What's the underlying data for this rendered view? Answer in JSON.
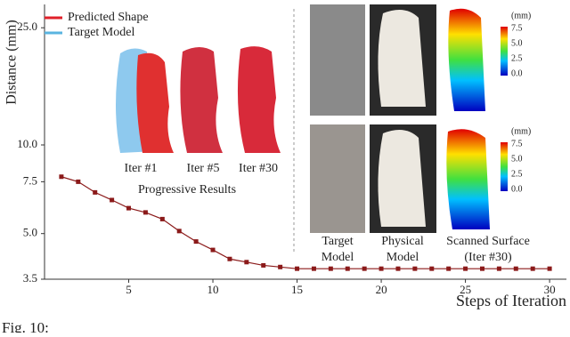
{
  "chart_data": {
    "type": "line",
    "ylabel": "Distance (mm)",
    "xlabel": "Steps of Iteration",
    "x": [
      1,
      2,
      3,
      4,
      5,
      6,
      7,
      8,
      9,
      10,
      11,
      12,
      13,
      14,
      15,
      16,
      17,
      18,
      19,
      20,
      21,
      22,
      23,
      24,
      25,
      26,
      27,
      28,
      29,
      30
    ],
    "series": [
      {
        "color": "#8b1a1a",
        "values": [
          7.8,
          7.5,
          6.9,
          6.5,
          6.1,
          5.9,
          5.6,
          5.1,
          4.7,
          4.4,
          4.1,
          4.0,
          3.9,
          3.85,
          3.8,
          3.8,
          3.8,
          3.8,
          3.8,
          3.8,
          3.8,
          3.8,
          3.8,
          3.8,
          3.8,
          3.8,
          3.8,
          3.8,
          3.8,
          3.8
        ]
      }
    ],
    "xlim": [
      0,
      31
    ],
    "xticks": [
      5,
      10,
      15,
      20,
      25,
      30
    ],
    "ylim": [
      3.5,
      30
    ],
    "log_y": true,
    "yticks": [
      3.5,
      {
        "value": 5,
        "label": "5.0"
      },
      7.5,
      {
        "value": 10,
        "label": "10.0"
      },
      {
        "value": 25,
        "label": "25.0"
      }
    ],
    "inset_legend": [
      {
        "name": "Predicted Shape",
        "color": "#e0202a"
      },
      {
        "name": "Target Model",
        "color": "#5ab4e0"
      }
    ],
    "inset_labels": [
      "Iter #1",
      "Iter #5",
      "Iter #30",
      "Progressive Results"
    ],
    "column_labels": [
      [
        "Target",
        "Model"
      ],
      [
        "Physical",
        "Model"
      ],
      [
        "Scanned Surface",
        "(Iter #30)"
      ]
    ],
    "colorbar_unit": "(mm)",
    "colorbar_ticks": [
      "7.5",
      "5.0",
      "2.5",
      "0.0"
    ],
    "caption": "Fig. 10:"
  }
}
